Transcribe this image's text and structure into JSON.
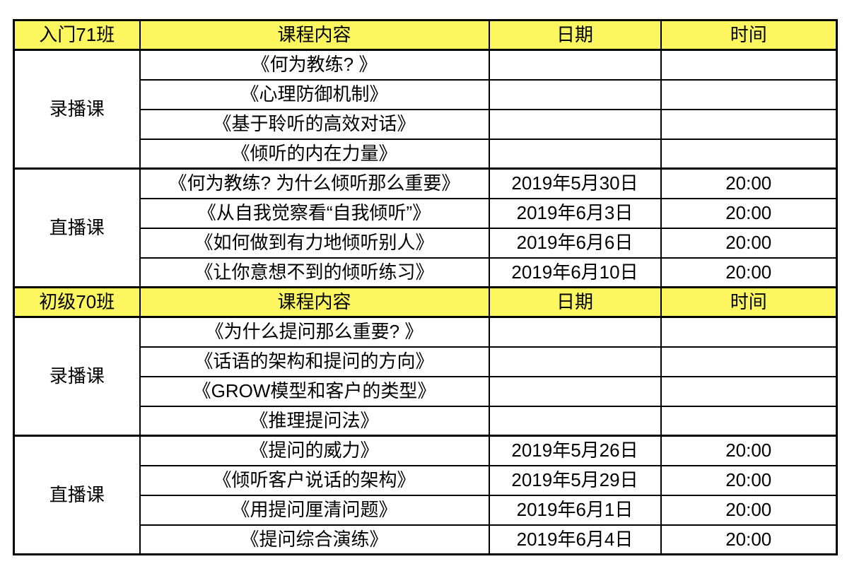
{
  "colors": {
    "header_bg": "#fcf75e",
    "border": "#000000",
    "text": "#000000",
    "page_bg": "#ffffff"
  },
  "sections": [
    {
      "class_name": "入门71班",
      "headers": {
        "content": "课程内容",
        "date": "日期",
        "time": "时间"
      },
      "recorded": {
        "label": "录播课",
        "rows": [
          {
            "title": "《何为教练? 》",
            "date": "",
            "time": ""
          },
          {
            "title": "《心理防御机制》",
            "date": "",
            "time": ""
          },
          {
            "title": "《基于聆听的高效对话》",
            "date": "",
            "time": ""
          },
          {
            "title": "《倾听的内在力量》",
            "date": "",
            "time": ""
          }
        ]
      },
      "live": {
        "label": "直播课",
        "rows": [
          {
            "title": "《何为教练? 为什么倾听那么重要》",
            "date": "2019年5月30日",
            "time": "20:00"
          },
          {
            "title": "《从自我觉察看“自我倾听”》",
            "date": "2019年6月3日",
            "time": "20:00"
          },
          {
            "title": "《如何做到有力地倾听别人》",
            "date": "2019年6月6日",
            "time": "20:00"
          },
          {
            "title": "《让你意想不到的倾听练习》",
            "date": "2019年6月10日",
            "time": "20:00"
          }
        ]
      }
    },
    {
      "class_name": "初级70班",
      "headers": {
        "content": "课程内容",
        "date": "日期",
        "time": "时间"
      },
      "recorded": {
        "label": "录播课",
        "rows": [
          {
            "title": "《为什么提问那么重要? 》",
            "date": "",
            "time": ""
          },
          {
            "title": "《话语的架构和提问的方向》",
            "date": "",
            "time": ""
          },
          {
            "title": "《GROW模型和客户的类型》",
            "date": "",
            "time": ""
          },
          {
            "title": "《推理提问法》",
            "date": "",
            "time": ""
          }
        ]
      },
      "live": {
        "label": "直播课",
        "rows": [
          {
            "title": "《提问的威力》",
            "date": "2019年5月26日",
            "time": "20:00"
          },
          {
            "title": "《倾听客户说话的架构》",
            "date": "2019年5月29日",
            "time": "20:00"
          },
          {
            "title": "《用提问厘清问题》",
            "date": "2019年6月1日",
            "time": "20:00"
          },
          {
            "title": "《提问综合演练》",
            "date": "2019年6月4日",
            "time": "20:00"
          }
        ]
      }
    }
  ]
}
